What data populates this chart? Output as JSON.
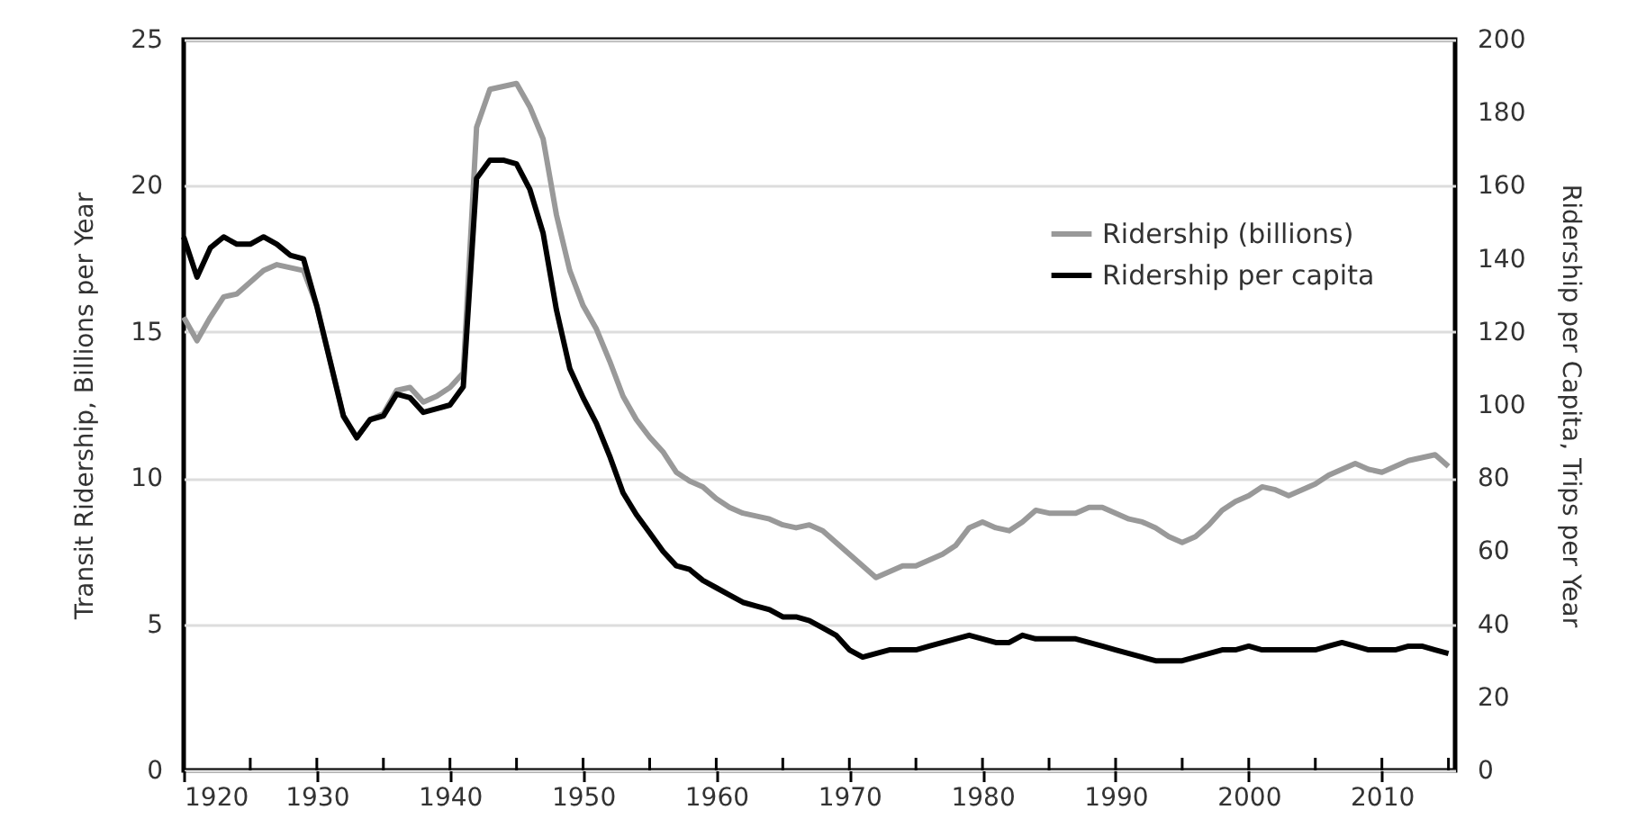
{
  "chart_data": {
    "type": "line",
    "xlabel": null,
    "ylabel": "Transit Ridership, Billions per Year",
    "y2label": "Ridership per Capita, Trips per Year",
    "x": [
      1920,
      1921,
      1922,
      1923,
      1924,
      1925,
      1926,
      1927,
      1928,
      1929,
      1930,
      1931,
      1932,
      1933,
      1934,
      1935,
      1936,
      1937,
      1938,
      1939,
      1940,
      1941,
      1942,
      1943,
      1944,
      1945,
      1946,
      1947,
      1948,
      1949,
      1950,
      1951,
      1952,
      1953,
      1954,
      1955,
      1956,
      1957,
      1958,
      1959,
      1960,
      1961,
      1962,
      1963,
      1964,
      1965,
      1966,
      1967,
      1968,
      1969,
      1970,
      1971,
      1972,
      1973,
      1974,
      1975,
      1976,
      1977,
      1978,
      1979,
      1980,
      1981,
      1982,
      1983,
      1984,
      1985,
      1986,
      1987,
      1988,
      1989,
      1990,
      1991,
      1992,
      1993,
      1994,
      1995,
      1996,
      1997,
      1998,
      1999,
      2000,
      2001,
      2002,
      2003,
      2004,
      2005,
      2006,
      2007,
      2008,
      2009,
      2010,
      2011,
      2012,
      2013,
      2014,
      2015
    ],
    "series": [
      {
        "name": "Ridership (billions)",
        "color": "#999999",
        "values": [
          15.5,
          14.7,
          15.5,
          16.2,
          16.3,
          16.7,
          17.1,
          17.3,
          17.2,
          17.1,
          15.9,
          14.0,
          12.1,
          11.4,
          12.0,
          12.2,
          13.0,
          13.1,
          12.6,
          12.8,
          13.1,
          13.6,
          22.0,
          23.3,
          23.4,
          23.5,
          22.7,
          21.6,
          19.0,
          17.1,
          15.9,
          15.1,
          14.0,
          12.8,
          12.0,
          11.4,
          10.9,
          10.2,
          9.9,
          9.7,
          9.3,
          9.0,
          8.8,
          8.7,
          8.6,
          8.4,
          8.3,
          8.4,
          8.2,
          7.8,
          7.4,
          7.0,
          6.6,
          6.8,
          7.0,
          7.0,
          7.2,
          7.4,
          7.7,
          8.3,
          8.5,
          8.3,
          8.2,
          8.5,
          8.9,
          8.8,
          8.8,
          8.8,
          9.0,
          9.0,
          8.8,
          8.6,
          8.5,
          8.3,
          8.0,
          7.8,
          8.0,
          8.4,
          8.9,
          9.2,
          9.4,
          9.7,
          9.6,
          9.4,
          9.6,
          9.8,
          10.1,
          10.3,
          10.5,
          10.3,
          10.2,
          10.4,
          10.6,
          10.7,
          10.8,
          10.4
        ]
      },
      {
        "name": "Ridership per capita",
        "color": "#000000",
        "axis": "y2",
        "values": [
          146,
          135,
          143,
          146,
          144,
          144,
          146,
          144,
          141,
          140,
          127,
          112,
          97,
          91,
          96,
          97,
          103,
          102,
          98,
          99,
          100,
          105,
          162,
          167,
          167,
          166,
          159,
          147,
          126,
          110,
          102,
          95,
          86,
          76,
          70,
          65,
          60,
          56,
          55,
          52,
          50,
          48,
          46,
          45,
          44,
          42,
          42,
          41,
          39,
          37,
          33,
          31,
          32,
          33,
          33,
          33,
          34,
          35,
          36,
          37,
          36,
          35,
          35,
          37,
          36,
          36,
          36,
          36,
          35,
          34,
          33,
          32,
          31,
          30,
          30,
          30,
          31,
          32,
          33,
          33,
          34,
          33,
          33,
          33,
          33,
          33,
          34,
          35,
          34,
          33,
          33,
          33,
          34,
          34,
          33,
          32
        ]
      }
    ],
    "xlim": [
      1920,
      2015.5
    ],
    "xticks": [
      1920,
      {
        "value": 1925,
        "label": null
      },
      1930,
      {
        "value": 1935,
        "label": null
      },
      1940,
      {
        "value": 1945,
        "label": null
      },
      1950,
      {
        "value": 1955,
        "label": null
      },
      1960,
      {
        "value": 1965,
        "label": null
      },
      1970,
      {
        "value": 1975,
        "label": null
      },
      1980,
      {
        "value": 1985,
        "label": null
      },
      1990,
      {
        "value": 1995,
        "label": null
      },
      2000,
      {
        "value": 2005,
        "label": null
      },
      2010,
      {
        "value": 2015,
        "label": null
      }
    ],
    "ylim": [
      0,
      25
    ],
    "yticks": [
      0,
      5,
      10,
      15,
      20,
      25
    ],
    "y2lim": [
      0,
      200
    ],
    "y2ticks": [
      0,
      20,
      40,
      60,
      80,
      100,
      120,
      140,
      160,
      180,
      200
    ],
    "grid": "y",
    "legend": "top right",
    "line_style": "solid"
  }
}
